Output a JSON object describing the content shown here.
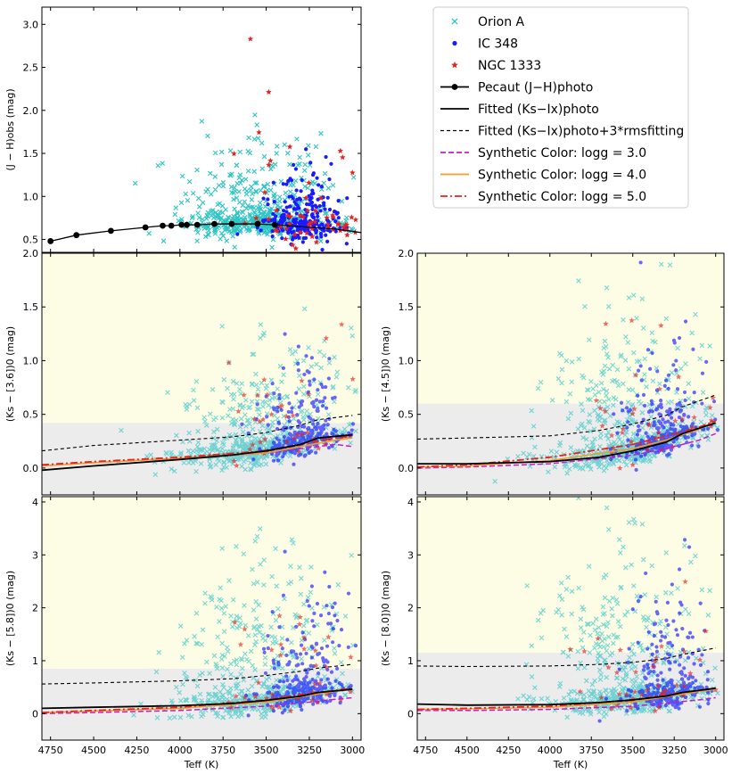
{
  "figure": {
    "description_axis_note": "Teff axis inverted (4800 K on left to 2950 K on right)"
  },
  "legend": {
    "entries": [
      {
        "label": "Orion A",
        "kind": "cross",
        "color": "#2ec4c4"
      },
      {
        "label": "IC 348",
        "kind": "dot",
        "color": "#1a1aff"
      },
      {
        "label": "NGC 1333",
        "kind": "star",
        "color": "#e8221f"
      },
      {
        "label": "Pecaut (J−H)photo",
        "kind": "line-dot",
        "color": "#000000"
      },
      {
        "label": "Fitted (Ks−Ix)photo",
        "kind": "solid",
        "color": "#000000"
      },
      {
        "label": "Fitted (Ks−Ix)photo+3*rmsfitting",
        "kind": "dashed",
        "color": "#000000"
      },
      {
        "label": "Synthetic Color: logg = 3.0",
        "kind": "dashed-color",
        "color": "#c51ec5"
      },
      {
        "label": "Synthetic Color: logg = 4.0",
        "kind": "solid-color",
        "color": "#f39c2a"
      },
      {
        "label": "Synthetic Color: logg = 5.0",
        "kind": "dashdot-color",
        "color": "#e8221f"
      }
    ]
  },
  "chart_data": [
    {
      "id": "jh",
      "type": "scatter",
      "ylabel": "(J − H)obs (mag)",
      "xlabel": "",
      "xlim": [
        4800,
        2950
      ],
      "ylim": [
        0.35,
        3.2
      ],
      "yticks": [
        0.5,
        1.0,
        1.5,
        2.0,
        2.5,
        3.0
      ],
      "xticks": [
        4750,
        4500,
        4250,
        4000,
        3750,
        3500,
        3250,
        3000
      ],
      "show_xticklabels": false,
      "pecaut_curve": {
        "x": [
          4750,
          4600,
          4400,
          4200,
          4100,
          4050,
          3990,
          3960,
          3900,
          3800,
          3700,
          3550,
          3450,
          3300,
          3100,
          2950
        ],
        "y": [
          0.48,
          0.55,
          0.6,
          0.64,
          0.66,
          0.66,
          0.67,
          0.67,
          0.67,
          0.68,
          0.68,
          0.68,
          0.67,
          0.65,
          0.62,
          0.58
        ],
        "marker_x": [
          4750,
          4600,
          4400,
          4200,
          4100,
          4050,
          3990,
          3960,
          3900,
          3800,
          3700,
          3550,
          3450
        ]
      },
      "groups": {
        "orion_a": {
          "n": 520,
          "xmean": 3550,
          "xspread": 420,
          "ybase": 0.75,
          "yspread": 0.45
        },
        "ic348": {
          "n": 260,
          "xmean": 3280,
          "xspread": 200,
          "ybase": 0.85,
          "yspread": 0.3
        },
        "ngc1333": {
          "n": 60,
          "xmean": 3300,
          "xspread": 350,
          "ybase": 1.3,
          "yspread": 0.7
        }
      },
      "yellow_above": null
    },
    {
      "id": "k36",
      "type": "scatter",
      "ylabel": "(Ks − [3.6])0 (mag)",
      "xlabel": "",
      "xlim": [
        4800,
        2950
      ],
      "ylim": [
        -0.25,
        2.0
      ],
      "yticks": [
        0.0,
        0.5,
        1.0,
        1.5,
        2.0
      ],
      "xticks": [
        4750,
        4500,
        4250,
        4000,
        3750,
        3500,
        3250,
        3000
      ],
      "show_xticklabels": false,
      "yellow_above": 0.42,
      "fit_curve": {
        "x": [
          4800,
          4500,
          4000,
          3700,
          3500,
          3300,
          3200,
          3000
        ],
        "y": [
          -0.02,
          0.02,
          0.08,
          0.12,
          0.16,
          0.22,
          0.28,
          0.31
        ]
      },
      "fit_rms_curve": {
        "x": [
          4800,
          4500,
          4000,
          3700,
          3500,
          3300,
          3200,
          3000
        ],
        "y": [
          0.16,
          0.21,
          0.26,
          0.29,
          0.33,
          0.4,
          0.45,
          0.49
        ]
      },
      "syn_g3": {
        "x": [
          4800,
          4500,
          4000,
          3500,
          3300,
          3100,
          3000
        ],
        "y": [
          0.02,
          0.05,
          0.09,
          0.14,
          0.18,
          0.22,
          0.2
        ]
      },
      "syn_g4": {
        "x": [
          4800,
          4500,
          4000,
          3500,
          3300,
          3100,
          3000
        ],
        "y": [
          0.02,
          0.05,
          0.09,
          0.14,
          0.2,
          0.26,
          0.28
        ]
      },
      "syn_g5": {
        "x": [
          4800,
          4500,
          4000,
          3500,
          3300,
          3100,
          3000
        ],
        "y": [
          0.03,
          0.06,
          0.1,
          0.16,
          0.22,
          0.28,
          0.3
        ]
      },
      "groups": {
        "orion_a": {
          "n": 560,
          "xmean": 3550,
          "xspread": 430,
          "ybase": 0.1,
          "yspread": 0.5
        },
        "ic348": {
          "n": 260,
          "xmean": 3300,
          "xspread": 220,
          "ybase": 0.2,
          "yspread": 0.35
        },
        "ngc1333": {
          "n": 40,
          "xmean": 3400,
          "xspread": 400,
          "ybase": 0.5,
          "yspread": 0.5
        }
      }
    },
    {
      "id": "k45",
      "type": "scatter",
      "ylabel": "(Ks − [4.5])0 (mag)",
      "xlabel": "",
      "xlim": [
        4800,
        2950
      ],
      "ylim": [
        -0.25,
        2.0
      ],
      "yticks": [
        0.0,
        0.5,
        1.0,
        1.5,
        2.0
      ],
      "xticks": [
        4750,
        4500,
        4250,
        4000,
        3750,
        3500,
        3250,
        3000
      ],
      "show_xticklabels": false,
      "yellow_above": 0.6,
      "fit_curve": {
        "x": [
          4800,
          4500,
          4000,
          3700,
          3500,
          3300,
          3200,
          3000
        ],
        "y": [
          0.04,
          0.04,
          0.06,
          0.1,
          0.16,
          0.24,
          0.32,
          0.42
        ]
      },
      "fit_rms_curve": {
        "x": [
          4800,
          4500,
          4000,
          3700,
          3500,
          3300,
          3200,
          3000
        ],
        "y": [
          0.27,
          0.28,
          0.3,
          0.35,
          0.41,
          0.49,
          0.57,
          0.68
        ]
      },
      "syn_g3": {
        "x": [
          4800,
          4500,
          4000,
          3500,
          3300,
          3100,
          3000
        ],
        "y": [
          0.0,
          0.01,
          0.04,
          0.12,
          0.18,
          0.26,
          0.32
        ]
      },
      "syn_g4": {
        "x": [
          4800,
          4500,
          4000,
          3500,
          3300,
          3100,
          3000
        ],
        "y": [
          0.01,
          0.02,
          0.07,
          0.18,
          0.26,
          0.36,
          0.44
        ]
      },
      "syn_g5": {
        "x": [
          4800,
          4500,
          4000,
          3500,
          3300,
          3100,
          3000
        ],
        "y": [
          0.01,
          0.03,
          0.1,
          0.22,
          0.3,
          0.38,
          0.44
        ]
      },
      "groups": {
        "orion_a": {
          "n": 560,
          "xmean": 3550,
          "xspread": 430,
          "ybase": 0.2,
          "yspread": 0.6
        },
        "ic348": {
          "n": 260,
          "xmean": 3300,
          "xspread": 220,
          "ybase": 0.3,
          "yspread": 0.4
        },
        "ngc1333": {
          "n": 40,
          "xmean": 3400,
          "xspread": 400,
          "ybase": 0.6,
          "yspread": 0.5
        }
      }
    },
    {
      "id": "k58",
      "type": "scatter",
      "ylabel": "(Ks − [5.8])0 (mag)",
      "xlabel": "Teff (K)",
      "xlim": [
        4800,
        2950
      ],
      "ylim": [
        -0.5,
        4.1
      ],
      "yticks": [
        0,
        1,
        2,
        3,
        4
      ],
      "xticks": [
        4750,
        4500,
        4250,
        4000,
        3750,
        3500,
        3250,
        3000
      ],
      "show_xticklabels": true,
      "yellow_above": 0.85,
      "fit_curve": {
        "x": [
          4800,
          4500,
          4000,
          3700,
          3500,
          3300,
          3200,
          3000
        ],
        "y": [
          0.1,
          0.12,
          0.15,
          0.19,
          0.25,
          0.33,
          0.4,
          0.46
        ]
      },
      "fit_rms_curve": {
        "x": [
          4800,
          4500,
          4000,
          3700,
          3500,
          3300,
          3200,
          3000
        ],
        "y": [
          0.56,
          0.58,
          0.62,
          0.66,
          0.72,
          0.8,
          0.86,
          0.93
        ]
      },
      "syn_g3": {
        "x": [
          4800,
          4500,
          4000,
          3500,
          3300,
          3100,
          3000
        ],
        "y": [
          0.0,
          0.02,
          0.06,
          0.14,
          0.2,
          0.27,
          0.3
        ]
      },
      "syn_g4": {
        "x": [
          4800,
          4500,
          4000,
          3500,
          3300,
          3100,
          3000
        ],
        "y": [
          0.02,
          0.05,
          0.1,
          0.22,
          0.32,
          0.42,
          0.46
        ]
      },
      "syn_g5": {
        "x": [
          4800,
          4500,
          4000,
          3500,
          3300,
          3100,
          3000
        ],
        "y": [
          0.02,
          0.06,
          0.12,
          0.26,
          0.36,
          0.44,
          0.48
        ]
      },
      "groups": {
        "orion_a": {
          "n": 560,
          "xmean": 3550,
          "xspread": 430,
          "ybase": 0.4,
          "yspread": 1.2
        },
        "ic348": {
          "n": 260,
          "xmean": 3300,
          "xspread": 220,
          "ybase": 0.6,
          "yspread": 0.9
        },
        "ngc1333": {
          "n": 40,
          "xmean": 3400,
          "xspread": 400,
          "ybase": 1.4,
          "yspread": 0.8
        }
      }
    },
    {
      "id": "k80",
      "type": "scatter",
      "ylabel": "(Ks − [8.0])0 (mag)",
      "xlabel": "Teff (K)",
      "xlim": [
        4800,
        2950
      ],
      "ylim": [
        -0.5,
        4.1
      ],
      "yticks": [
        0,
        1,
        2,
        3,
        4
      ],
      "xticks": [
        4750,
        4500,
        4250,
        4000,
        3750,
        3500,
        3250,
        3000
      ],
      "show_xticklabels": true,
      "yellow_above": 1.15,
      "fit_curve": {
        "x": [
          4800,
          4500,
          4000,
          3700,
          3500,
          3300,
          3200,
          3000
        ],
        "y": [
          0.18,
          0.16,
          0.17,
          0.21,
          0.26,
          0.33,
          0.4,
          0.48
        ]
      },
      "fit_rms_curve": {
        "x": [
          4800,
          4500,
          4000,
          3700,
          3500,
          3300,
          3200,
          3000
        ],
        "y": [
          0.9,
          0.89,
          0.9,
          0.93,
          0.97,
          1.04,
          1.12,
          1.24
        ]
      },
      "syn_g3": {
        "x": [
          4800,
          4500,
          4000,
          3500,
          3300,
          3100,
          3000
        ],
        "y": [
          0.06,
          0.06,
          0.08,
          0.14,
          0.2,
          0.26,
          0.3
        ]
      },
      "syn_g4": {
        "x": [
          4800,
          4500,
          4000,
          3500,
          3300,
          3100,
          3000
        ],
        "y": [
          0.08,
          0.09,
          0.12,
          0.22,
          0.32,
          0.42,
          0.46
        ]
      },
      "syn_g5": {
        "x": [
          4800,
          4500,
          4000,
          3500,
          3300,
          3100,
          3000
        ],
        "y": [
          0.08,
          0.1,
          0.14,
          0.26,
          0.36,
          0.44,
          0.48
        ]
      },
      "groups": {
        "orion_a": {
          "n": 560,
          "xmean": 3550,
          "xspread": 430,
          "ybase": 0.5,
          "yspread": 1.4
        },
        "ic348": {
          "n": 260,
          "xmean": 3300,
          "xspread": 220,
          "ybase": 0.7,
          "yspread": 1.0
        },
        "ngc1333": {
          "n": 40,
          "xmean": 3400,
          "xspread": 400,
          "ybase": 1.6,
          "yspread": 0.8
        }
      }
    }
  ]
}
